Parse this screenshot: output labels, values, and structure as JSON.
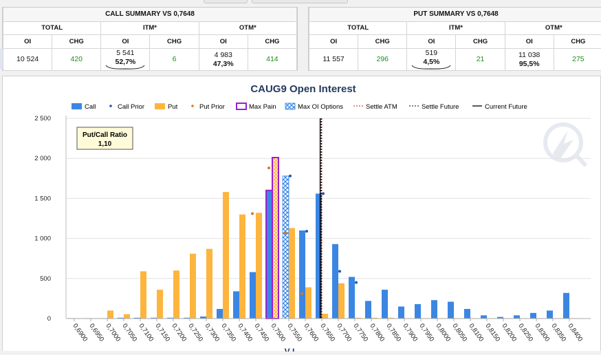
{
  "call_summary": {
    "title": "CALL SUMMARY VS 0,7648",
    "total_label": "TOTAL",
    "itm_label": "ITM*",
    "otm_label": "OTM*",
    "oi_label": "OI",
    "chg_label": "CHG",
    "total_oi": "10 524",
    "total_chg": "420",
    "itm_oi": "5 541",
    "itm_pct": "52,7%",
    "itm_chg": "6",
    "otm_oi": "4 983",
    "otm_pct": "47,3%",
    "otm_chg": "414"
  },
  "put_summary": {
    "title": "PUT SUMMARY VS 0,7648",
    "total_label": "TOTAL",
    "itm_label": "ITM*",
    "otm_label": "OTM*",
    "oi_label": "OI",
    "chg_label": "CHG",
    "total_oi": "11 557",
    "total_chg": "296",
    "itm_oi": "519",
    "itm_pct": "4,5%",
    "itm_chg": "21",
    "otm_oi": "11 038",
    "otm_pct": "95,5%",
    "otm_chg": "275"
  },
  "colors": {
    "call": "#3b86e3",
    "call_prior": "#2456a8",
    "put": "#fdb53e",
    "put_prior": "#d97a1c",
    "max_pain": "#9b1fd1",
    "title": "#253a5e",
    "settle_atm": "#b02020",
    "chg_green": "#1a8f1a"
  },
  "chart_data": {
    "type": "bar",
    "title": "CAUG9 Open Interest",
    "ylim": [
      0,
      2500
    ],
    "yticks": [
      "2 500",
      "2 000",
      "1 500",
      "1 000",
      "500",
      "0"
    ],
    "grid": true,
    "legend_position": "top",
    "legend": [
      "Call",
      "Call Prior",
      "Put",
      "Put Prior",
      "Max Pain",
      "Max OI Options",
      "Settle ATM",
      "Settle Future",
      "Current Future"
    ],
    "ratio_label": "Put/Call Ratio",
    "ratio_value": "1,10",
    "categories": [
      "0,6900",
      "0,6950",
      "0,7000",
      "0,7050",
      "0,7100",
      "0,7150",
      "0,7200",
      "0,7250",
      "0,7300",
      "0,7350",
      "0,7400",
      "0,7450",
      "0,7500",
      "0,7550",
      "0,7600",
      "0,7650",
      "0,7700",
      "0,7750",
      "0,7800",
      "0,7850",
      "0,7900",
      "0,7950",
      "0,8000",
      "0,8050",
      "0,8100",
      "0,8150",
      "0,8200",
      "0,8250",
      "0,8300",
      "0,8350",
      "0,8400"
    ],
    "series": [
      {
        "name": "Call",
        "values": [
          5,
          5,
          5,
          10,
          10,
          10,
          10,
          10,
          25,
          120,
          340,
          580,
          1600,
          1780,
          1100,
          1560,
          930,
          520,
          220,
          360,
          150,
          180,
          230,
          210,
          120,
          40,
          20,
          40,
          70,
          100,
          320
        ]
      },
      {
        "name": "Put",
        "values": [
          5,
          5,
          100,
          55,
          590,
          360,
          600,
          810,
          870,
          1580,
          1300,
          1320,
          2010,
          1130,
          390,
          60,
          440,
          10,
          10,
          10,
          5,
          5,
          5,
          5,
          5,
          5,
          5,
          5,
          5,
          5,
          5
        ]
      },
      {
        "name": "Call Prior",
        "values": [
          null,
          null,
          null,
          null,
          null,
          null,
          null,
          null,
          null,
          null,
          null,
          null,
          null,
          1780,
          1090,
          1560,
          590,
          450,
          null,
          null,
          null,
          null,
          null,
          null,
          null,
          null,
          null,
          null,
          null,
          null,
          null
        ]
      },
      {
        "name": "Put Prior",
        "values": [
          null,
          null,
          null,
          null,
          null,
          null,
          null,
          null,
          null,
          null,
          null,
          1310,
          1880,
          1070,
          310,
          null,
          null,
          null,
          null,
          null,
          null,
          null,
          null,
          null,
          null,
          null,
          null,
          null,
          null,
          null,
          null
        ]
      }
    ],
    "max_pain": "0,7500",
    "max_oi_options": "0,7550",
    "settle_future": 0.7648,
    "current_future": 0.7645,
    "settle_atm": 0.765,
    "xlabel_partial": "V I"
  }
}
